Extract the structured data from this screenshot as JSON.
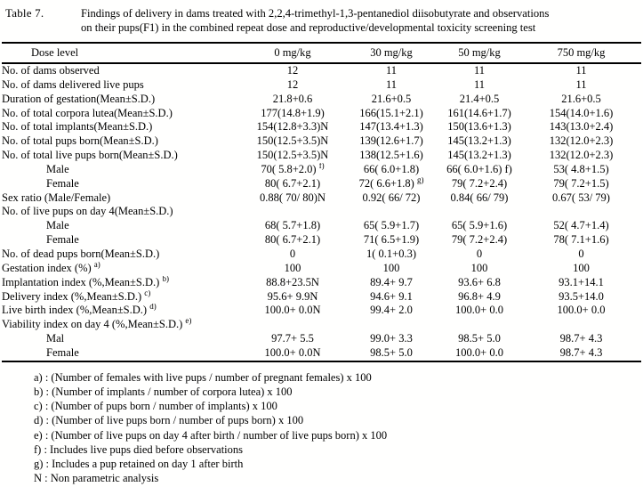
{
  "title": {
    "label": "Table 7.",
    "lines": [
      "Findings of delivery in dams treated with 2,2,4-trimethyl-1,3-pentanediol diisobutyrate and observations",
      "on their pups(F1) in the combined repeat dose and reproductive/developmental toxicity screening test"
    ]
  },
  "table": {
    "header": {
      "row_label": "Dose level",
      "columns": [
        "0 mg/kg",
        "30 mg/kg",
        "50 mg/kg",
        "750 mg/kg"
      ]
    },
    "rows": [
      {
        "label": "No. of dams observed",
        "indent": false,
        "values": [
          "12",
          "11",
          "11",
          "11"
        ]
      },
      {
        "label": "No. of dams delivered live pups",
        "indent": false,
        "values": [
          "12",
          "11",
          "11",
          "11"
        ]
      },
      {
        "label": "Duration of gestation(Mean±S.D.)",
        "indent": false,
        "values": [
          "21.8+0.6",
          "21.6+0.5",
          "21.4+0.5",
          "21.6+0.5"
        ]
      },
      {
        "label": "No. of total corpora lutea(Mean±S.D.)",
        "indent": false,
        "values": [
          "177(14.8+1.9)",
          "166(15.1+2.1)",
          "161(14.6+1.7)",
          "154(14.0+1.6)"
        ]
      },
      {
        "label": "No. of total implants(Mean±S.D.)",
        "indent": false,
        "values": [
          "154(12.8+3.3)N",
          "147(13.4+1.3)",
          "150(13.6+1.3)",
          "143(13.0+2.4)"
        ]
      },
      {
        "label": "No. of total pups born(Mean±S.D.)",
        "indent": false,
        "values": [
          "150(12.5+3.5)N",
          "139(12.6+1.7)",
          "145(13.2+1.3)",
          "132(12.0+2.3)"
        ]
      },
      {
        "label": "No. of total live pups born(Mean±S.D.)",
        "indent": false,
        "values": [
          "150(12.5+3.5)N",
          "138(12.5+1.6)",
          "145(13.2+1.3)",
          "132(12.0+2.3)"
        ]
      },
      {
        "label": "Male",
        "indent": true,
        "values": [
          {
            "t": "70( 5.8+2.0)",
            "s": "f)"
          },
          "66( 6.0+1.8)",
          "66( 6.0+1.6) f)",
          "53( 4.8+1.5)"
        ]
      },
      {
        "label": "Female",
        "indent": true,
        "values": [
          "80( 6.7+2.1)",
          {
            "t": "72( 6.6+1.8)",
            "s": "g)"
          },
          "79( 7.2+2.4)",
          "79( 7.2+1.5)"
        ]
      },
      {
        "label": "Sex ratio (Male/Female)",
        "indent": false,
        "values": [
          "0.88( 70/ 80)N",
          "0.92( 66/ 72)",
          "0.84( 66/ 79)",
          "0.67( 53/ 79)"
        ]
      },
      {
        "label": "No. of live pups on day 4(Mean±S.D.)",
        "indent": false,
        "values": [
          "",
          "",
          "",
          ""
        ]
      },
      {
        "label": "Male",
        "indent": true,
        "values": [
          "68( 5.7+1.8)",
          "65( 5.9+1.7)",
          "65( 5.9+1.6)",
          "52( 4.7+1.4)"
        ]
      },
      {
        "label": "Female",
        "indent": true,
        "values": [
          "80( 6.7+2.1)",
          "71( 6.5+1.9)",
          "79( 7.2+2.4)",
          "78( 7.1+1.6)"
        ]
      },
      {
        "label": "No. of dead pups born(Mean±S.D.)",
        "indent": false,
        "values": [
          "0",
          "1( 0.1+0.3)",
          "0",
          "0"
        ]
      },
      {
        "label": "Gestation index (%)",
        "sup": "a)",
        "indent": false,
        "values": [
          "100",
          "100",
          "100",
          "100"
        ]
      },
      {
        "label": "Implantation index (%,Mean±S.D.)",
        "sup": "b)",
        "indent": false,
        "values": [
          "88.8+23.5N",
          "89.4+ 9.7",
          "93.6+ 6.8",
          "93.1+14.1"
        ]
      },
      {
        "label": "Delivery index (%,Mean±S.D.)",
        "sup": "c)",
        "indent": false,
        "values": [
          "95.6+ 9.9N",
          "94.6+ 9.1",
          "96.8+ 4.9",
          "93.5+14.0"
        ]
      },
      {
        "label": "Live birth index (%,Mean±S.D.)",
        "sup": "d)",
        "indent": false,
        "values": [
          "100.0+ 0.0N",
          "99.4+ 2.0",
          "100.0+ 0.0",
          "100.0+ 0.0"
        ]
      },
      {
        "label": "Viability index on day 4 (%,Mean±S.D.)",
        "sup": "e)",
        "indent": false,
        "values": [
          "",
          "",
          "",
          ""
        ]
      },
      {
        "label": "Mal",
        "indent": true,
        "values": [
          "97.7+ 5.5",
          "99.0+ 3.3",
          "98.5+ 5.0",
          "98.7+ 4.3"
        ]
      },
      {
        "label": "Female",
        "indent": true,
        "values": [
          "100.0+ 0.0N",
          "98.5+ 5.0",
          "100.0+ 0.0",
          "98.7+ 4.3"
        ]
      }
    ]
  },
  "footnotes": [
    "a) : (Number of females with live pups / number of pregnant females) x 100",
    "b) : (Number of implants / number of corpora lutea) x 100",
    "c) : (Number of pups born / number of implants) x 100",
    "d) : (Number of live pups born / number of pups born) x 100",
    "e) : (Number of live pups on day 4 after birth / number of live pups born) x 100",
    "f) : Includes live pups died before observations",
    "g) : Includes a pup retained on day 1 after birth",
    "N : Non parametric analysis"
  ]
}
